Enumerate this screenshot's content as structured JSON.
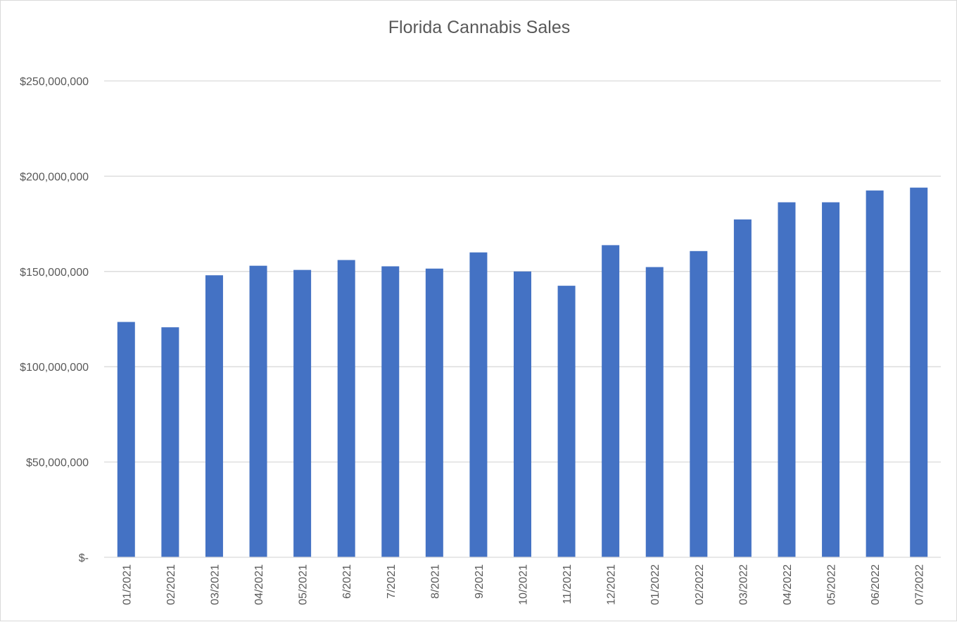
{
  "chart_data": {
    "type": "bar",
    "title": "Florida Cannabis Sales",
    "xlabel": "",
    "ylabel": "",
    "categories": [
      "01/2021",
      "02/2021",
      "03/2021",
      "04/2021",
      "05/2021",
      "6/2021",
      "7/2021",
      "8/2021",
      "9/2021",
      "10/2021",
      "11/2021",
      "12/2021",
      "01/2022",
      "02/2022",
      "03/2022",
      "04/2022",
      "05/2022",
      "06/2022",
      "07/2022"
    ],
    "values": [
      123500000,
      120700000,
      148000000,
      153000000,
      150800000,
      156000000,
      152700000,
      151500000,
      160000000,
      150000000,
      142500000,
      163800000,
      152300000,
      160700000,
      177300000,
      186300000,
      186300000,
      192500000,
      194000000
    ],
    "ylim": [
      0,
      250000000
    ],
    "yticks": [
      0,
      50000000,
      100000000,
      150000000,
      200000000,
      250000000
    ],
    "ytick_labels": [
      "$-",
      "$50,000,000",
      "$100,000,000",
      "$150,000,000",
      "$200,000,000",
      "$250,000,000"
    ],
    "grid": true,
    "legend": "none",
    "bar_color": "#4472C4",
    "grid_color": "#d9d9d9",
    "axis_color": "#d9d9d9",
    "text_color": "#595959"
  }
}
